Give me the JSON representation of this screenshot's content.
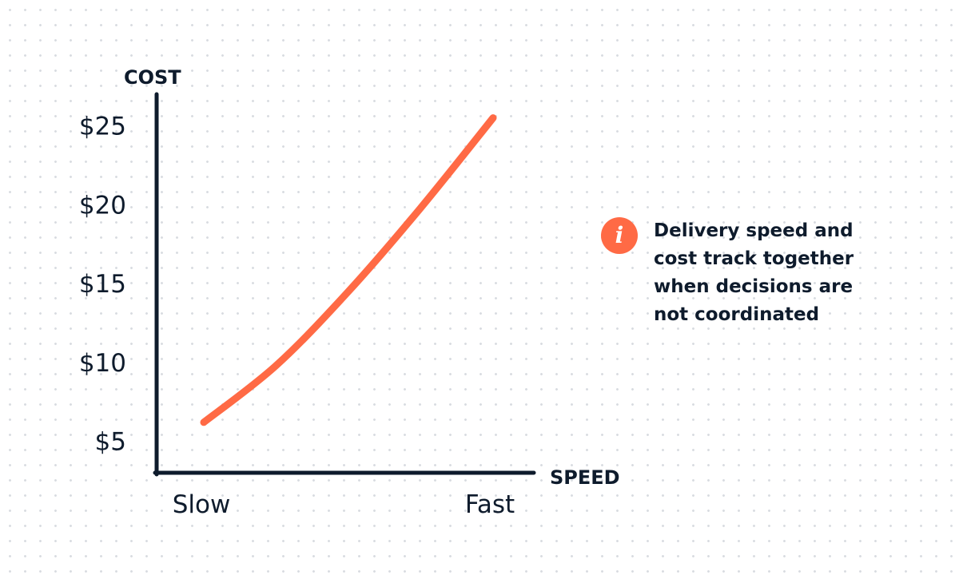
{
  "chart_data": {
    "type": "line",
    "xlabel": "SPEED",
    "ylabel": "COST",
    "x_tick_labels": [
      "Slow",
      "Fast"
    ],
    "y_ticks": [
      5,
      10,
      15,
      20,
      25
    ],
    "y_tick_labels": [
      "$5",
      "$10",
      "$15",
      "$20",
      "$25"
    ],
    "ylim": [
      3,
      27
    ],
    "xlim": [
      0,
      1
    ],
    "grid": false,
    "series": [
      {
        "color": "#ff6a45",
        "x": [
          0,
          0.25,
          0.5,
          0.75,
          1
        ],
        "y": [
          6.2,
          9.8,
          14.5,
          19.8,
          25.5
        ]
      }
    ]
  },
  "callout": {
    "icon": "info-icon",
    "text": "Delivery speed and cost track together when decisions are not coordinated",
    "accent_color": "#ff6a45"
  }
}
